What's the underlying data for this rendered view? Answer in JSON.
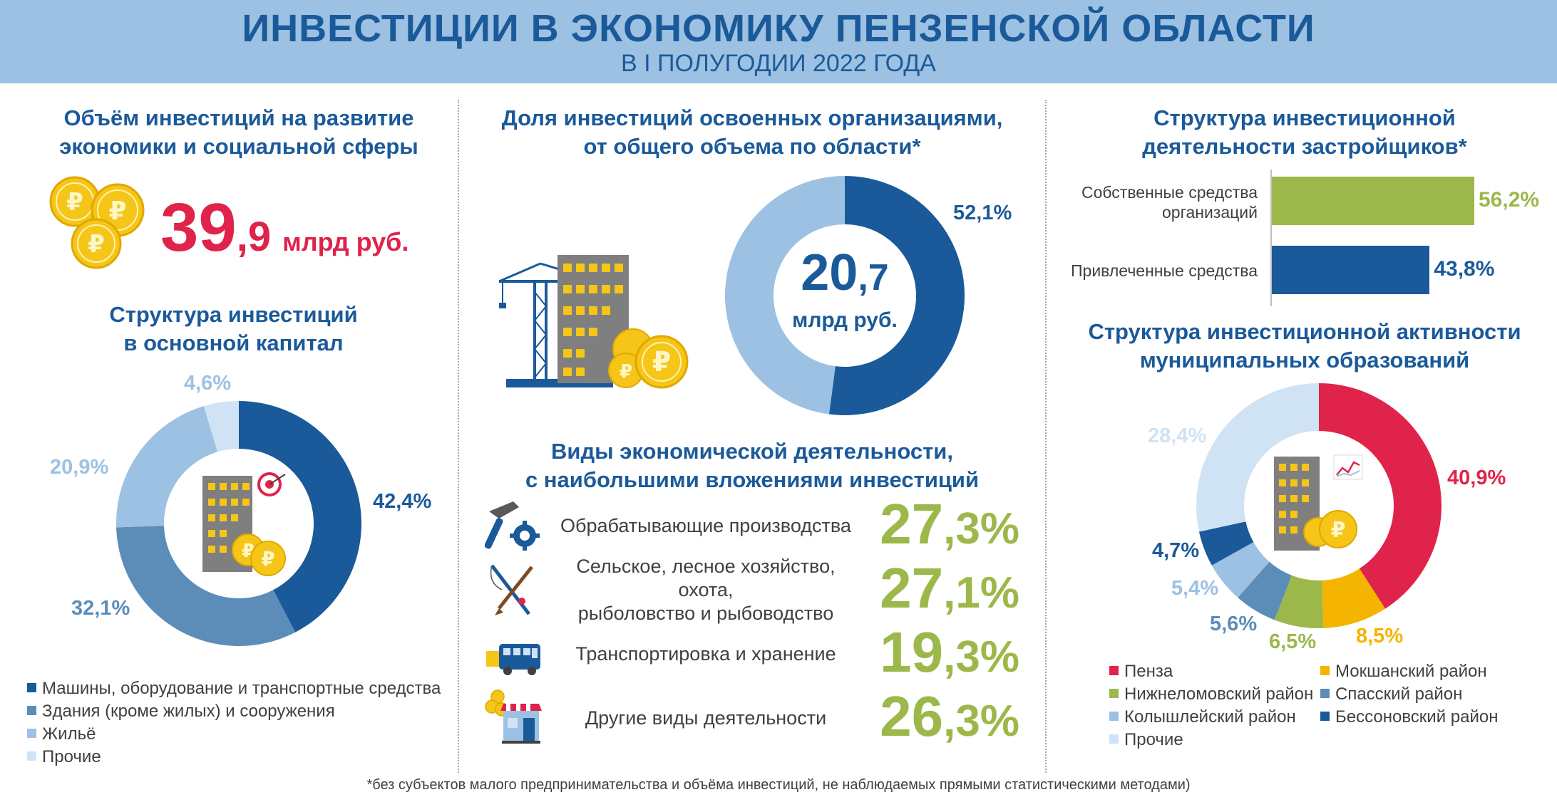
{
  "header": {
    "title": "ИНВЕСТИЦИИ В ЭКОНОМИКУ ПЕНЗЕНСКОЙ ОБЛАСТИ",
    "subtitle": "В I ПОЛУГОДИИ 2022 ГОДА"
  },
  "volume": {
    "title_line1": "Объём инвестиций на развитие",
    "title_line2": "экономики и социальной сферы",
    "value_int": "39",
    "value_dec": ",9",
    "unit": "млрд руб."
  },
  "colors": {
    "dark_blue": "#1b5a9a",
    "mid_blue": "#5b8db8",
    "light_blue": "#9dc1e2",
    "pale_blue": "#cfe3f5",
    "red": "#e0234a",
    "gold": "#f4b400",
    "green": "#9cb84a",
    "steel": "#6e98ba",
    "navy": "#1b5a9a"
  },
  "chart_data": [
    {
      "type": "pie",
      "title": "Структура инвестиций в основной капитал",
      "title_line1": "Структура  инвестиций",
      "title_line2": "в основной капитал",
      "slices": [
        {
          "name": "Машины, оборудование и транспортные средства",
          "value": 42.4,
          "label": "42,4%",
          "color": "#1b5a9a"
        },
        {
          "name": "Здания (кроме жилых) и сооружения",
          "value": 32.1,
          "label": "32,1%",
          "color": "#5b8db8"
        },
        {
          "name": "Жильё",
          "value": 20.9,
          "label": "20,9%",
          "color": "#9dc1e2"
        },
        {
          "name": "Прочие",
          "value": 4.6,
          "label": "4,6%",
          "color": "#cfe3f5"
        }
      ]
    },
    {
      "type": "pie",
      "title": "Доля инвестиций освоенных организациями, от общего объема по области*",
      "title_line1": "Доля инвестиций освоенных организациями,",
      "title_line2": "от общего объема по области*",
      "center_value_int": "20",
      "center_value_dec": ",7",
      "center_unit": "млрд руб.",
      "slices": [
        {
          "value": 52.1,
          "label": "52,1%",
          "color": "#1b5a9a"
        },
        {
          "value": 47.9,
          "label": "",
          "color": "#9dc1e2"
        }
      ]
    },
    {
      "type": "bar",
      "orientation": "horizontal",
      "title": "Структура инвестиционной деятельности застройщиков*",
      "title_line1": "Структура  инвестиционной",
      "title_line2": "деятельности застройщиков*",
      "categories": [
        "Собственные средства организаций",
        "Привлеченные средства"
      ],
      "category_lines": [
        [
          "Собственные средства",
          "организаций"
        ],
        [
          "Привлеченные средства"
        ]
      ],
      "values": [
        56.2,
        43.8
      ],
      "labels": [
        "56,2%",
        "43,8%"
      ],
      "colors": [
        "#9cb84a",
        "#1b5a9a"
      ],
      "xlim": [
        0,
        56.2
      ]
    },
    {
      "type": "pie",
      "title": "Структура инвестиционной активности муниципальных образований",
      "title_line1": "Структура  инвестиционной активности",
      "title_line2": "муниципальных образований",
      "slices": [
        {
          "name": "Пенза",
          "value": 40.9,
          "label": "40,9%",
          "color": "#e0234a"
        },
        {
          "name": "Мокшанский район",
          "value": 8.5,
          "label": "8,5%",
          "color": "#f4b400"
        },
        {
          "name": "Нижнеломовский район",
          "value": 6.5,
          "label": "6,5%",
          "color": "#9cb84a"
        },
        {
          "name": "Спасский район",
          "value": 5.6,
          "label": "5,6%",
          "color": "#5b8db8"
        },
        {
          "name": "Колышлейский район",
          "value": 5.4,
          "label": "5,4%",
          "color": "#9dc1e2"
        },
        {
          "name": "Бессоновский район",
          "value": 4.7,
          "label": "4,7%",
          "color": "#1b5a9a"
        },
        {
          "name": "Прочие",
          "value": 28.4,
          "label": "28,4%",
          "color": "#cfe3f5"
        }
      ]
    }
  ],
  "activities": {
    "title_line1": "Виды экономической деятельности,",
    "title_line2": "с наибольшими вложениями инвестиций",
    "items": [
      {
        "label_line1": "Обрабатывающие производства",
        "label_line2": "",
        "value_int": "27",
        "value_dec": ",3%",
        "icon": "hammer-gear-icon"
      },
      {
        "label_line1": "Сельское, лесное хозяйство, охота,",
        "label_line2": "рыболовство и рыбоводство",
        "value_int": "27",
        "value_dec": ",1%",
        "icon": "fishing-rod-rifle-icon"
      },
      {
        "label_line1": "Транспортировка и хранение",
        "label_line2": "",
        "value_int": "19",
        "value_dec": ",3%",
        "icon": "bus-icon"
      },
      {
        "label_line1": "Другие виды деятельности",
        "label_line2": "",
        "value_int": "26",
        "value_dec": ",3%",
        "icon": "shop-coins-icon"
      }
    ]
  },
  "footnote": "*без субъектов малого предпринимательства  и объёма инвестиций,  не наблюдаемых прямыми  статистическими методами)"
}
